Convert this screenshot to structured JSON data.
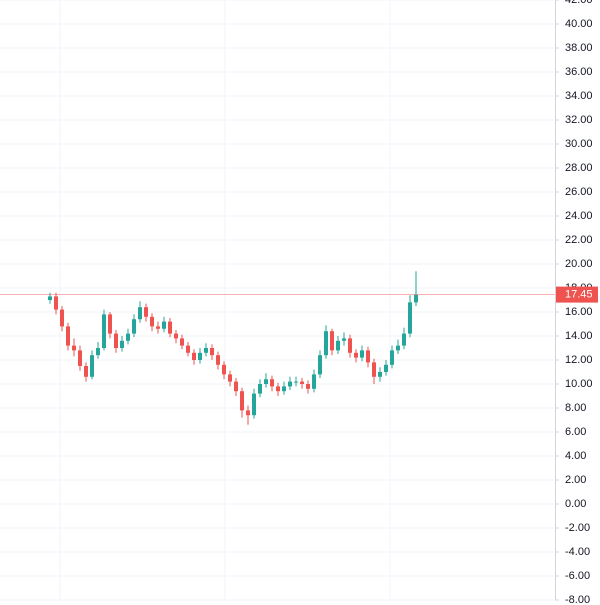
{
  "chart_data": {
    "type": "candlestick",
    "open": [
      17.0,
      17.3,
      16.2,
      14.8,
      13.2,
      12.8,
      11.5,
      10.6,
      12.4,
      13.0,
      15.8,
      14.2,
      13.0,
      13.6,
      14.2,
      15.4,
      16.4,
      15.6,
      14.8,
      14.6,
      15.2,
      14.2,
      13.8,
      13.2,
      12.6,
      12.0,
      12.6,
      13.0,
      12.4,
      11.6,
      10.8,
      10.2,
      9.4,
      7.8,
      7.4,
      9.2,
      10.0,
      10.4,
      9.8,
      9.4,
      9.8,
      10.2,
      10.2,
      10.0,
      9.6,
      10.8,
      12.4,
      14.4,
      12.8,
      13.6,
      13.8,
      12.6,
      12.2,
      12.8,
      11.8,
      10.6,
      11.0,
      11.6,
      12.8,
      13.2,
      14.2,
      16.8
    ],
    "high": [
      17.6,
      17.6,
      16.5,
      15.1,
      13.8,
      13.2,
      11.8,
      12.8,
      13.5,
      16.2,
      16.0,
      14.5,
      14.0,
      14.6,
      15.8,
      16.9,
      16.7,
      15.9,
      15.2,
      15.6,
      15.5,
      14.5,
      14.1,
      13.5,
      12.9,
      13.0,
      13.4,
      13.3,
      12.7,
      11.9,
      11.1,
      10.5,
      9.7,
      8.2,
      9.6,
      10.4,
      10.9,
      10.7,
      10.1,
      10.2,
      10.6,
      10.6,
      10.5,
      10.3,
      11.2,
      12.8,
      14.9,
      14.6,
      14.0,
      14.3,
      14.1,
      12.9,
      13.2,
      13.1,
      12.1,
      11.4,
      12.0,
      13.2,
      13.7,
      14.7,
      17.4,
      19.4
    ],
    "low": [
      16.7,
      15.8,
      14.4,
      12.8,
      12.3,
      11.1,
      10.2,
      10.4,
      12.1,
      12.8,
      13.8,
      12.6,
      12.7,
      13.3,
      13.9,
      15.1,
      15.2,
      14.4,
      14.2,
      14.3,
      13.9,
      13.4,
      12.9,
      12.3,
      11.6,
      11.7,
      12.3,
      12.0,
      11.2,
      10.4,
      9.8,
      9.0,
      7.2,
      6.6,
      7.1,
      8.9,
      9.7,
      9.4,
      9.0,
      9.1,
      9.5,
      9.8,
      9.6,
      9.2,
      9.3,
      10.5,
      12.1,
      12.4,
      12.5,
      13.2,
      12.2,
      11.8,
      11.9,
      11.4,
      10.0,
      10.2,
      10.7,
      11.3,
      12.5,
      12.9,
      13.9,
      16.5
    ],
    "close": [
      17.3,
      16.2,
      14.8,
      13.2,
      12.8,
      11.5,
      10.6,
      12.4,
      13.0,
      15.8,
      14.2,
      13.0,
      13.6,
      14.2,
      15.4,
      16.4,
      15.6,
      14.8,
      14.6,
      15.2,
      14.2,
      13.8,
      13.2,
      12.6,
      12.0,
      12.6,
      13.0,
      12.4,
      11.6,
      10.8,
      10.2,
      9.4,
      7.8,
      7.4,
      9.2,
      10.0,
      10.4,
      9.8,
      9.4,
      9.8,
      10.2,
      10.2,
      10.0,
      9.6,
      10.8,
      12.4,
      14.4,
      12.8,
      13.6,
      13.8,
      12.6,
      12.2,
      12.8,
      11.8,
      10.6,
      11.0,
      11.6,
      12.8,
      13.2,
      14.2,
      16.8,
      17.45
    ],
    "up_color": "#26a69a",
    "down_color": "#ef5350",
    "last_price": 17.45,
    "last_price_color": "#ef5350",
    "ylim": [
      -8,
      42
    ],
    "yticks": [
      {
        "value": -8,
        "label": "-8.00"
      },
      {
        "value": -6,
        "label": "-6.00"
      },
      {
        "value": -4,
        "label": "-4.00"
      },
      {
        "value": -2,
        "label": "-2.00"
      },
      {
        "value": 0,
        "label": "0.00"
      },
      {
        "value": 2,
        "label": "2.00"
      },
      {
        "value": 4,
        "label": "4.00"
      },
      {
        "value": 6,
        "label": "6.00"
      },
      {
        "value": 8,
        "label": "8.00"
      },
      {
        "value": 10,
        "label": "10.00"
      },
      {
        "value": 12,
        "label": "12.00"
      },
      {
        "value": 14,
        "label": "14.00"
      },
      {
        "value": 16,
        "label": "16.00"
      },
      {
        "value": 18,
        "label": "18.00"
      },
      {
        "value": 20,
        "label": "20.00"
      },
      {
        "value": 22,
        "label": "22.00"
      },
      {
        "value": 24,
        "label": "24.00"
      },
      {
        "value": 26,
        "label": "26.00"
      },
      {
        "value": 28,
        "label": "28.00"
      },
      {
        "value": 30,
        "label": "30.00"
      },
      {
        "value": 32,
        "label": "32.00"
      },
      {
        "value": 34,
        "label": "34.00"
      },
      {
        "value": 36,
        "label": "36.00"
      },
      {
        "value": 38,
        "label": "38.00"
      },
      {
        "value": 40,
        "label": "40.00"
      },
      {
        "value": 42,
        "label": "42.00"
      }
    ],
    "grid": true
  }
}
